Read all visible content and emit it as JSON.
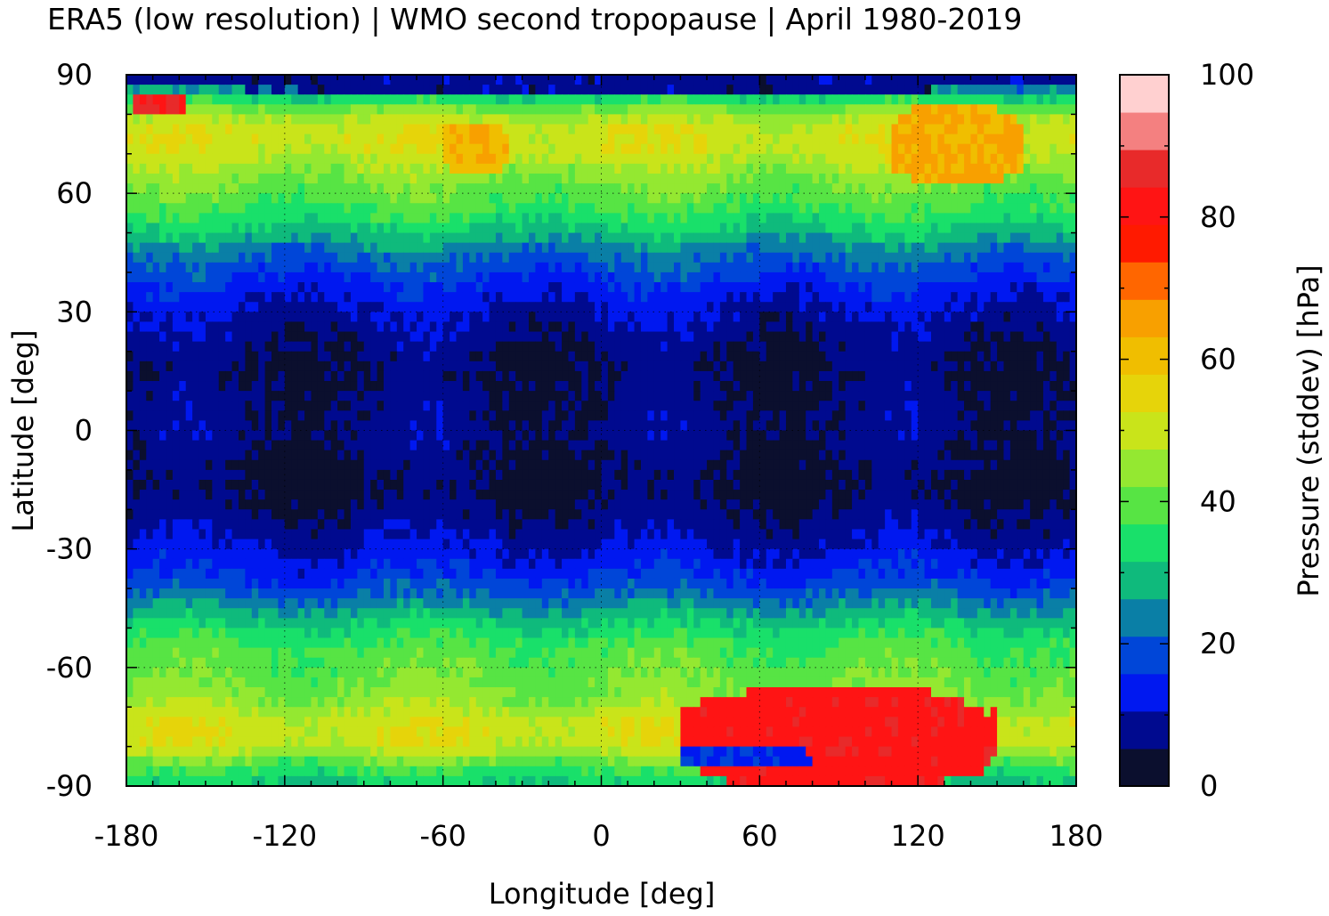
{
  "chart_data": {
    "type": "heatmap",
    "title": "ERA5 (low resolution) | WMO second tropopause | April 1980-2019",
    "xlabel": "Longitude [deg]",
    "ylabel": "Latitude [deg]",
    "colorbar_label": "Pressure (stddev) [hPa]",
    "xlim": [
      -180,
      180
    ],
    "ylim": [
      -90,
      90
    ],
    "x_ticks": [
      "-180",
      "-120",
      "-60",
      "0",
      "60",
      "120",
      "180"
    ],
    "y_ticks": [
      "90",
      "60",
      "30",
      "0",
      "-30",
      "-60",
      "-90"
    ],
    "colorbar_range": [
      0,
      100
    ],
    "colorbar_ticks": [
      "100",
      "80",
      "60",
      "40",
      "20",
      "0"
    ],
    "colorbar_colors": [
      "#0b0f2e",
      "#000a8f",
      "#0018f0",
      "#0046d8",
      "#0a7fa6",
      "#0fba7c",
      "#19e06a",
      "#57e444",
      "#94e831",
      "#c9e41a",
      "#e6d40a",
      "#f0be00",
      "#f8a000",
      "#ff6600",
      "#ff1a00",
      "#ff1414",
      "#e82a2a",
      "#f48080",
      "#ffd0d0"
    ],
    "grid": true,
    "grid_style": "dotted",
    "zonal_profile": {
      "lat": [
        90,
        85,
        80,
        75,
        70,
        65,
        60,
        55,
        50,
        45,
        40,
        35,
        30,
        25,
        20,
        15,
        10,
        5,
        0,
        -5,
        -10,
        -15,
        -20,
        -25,
        -30,
        -35,
        -40,
        -45,
        -50,
        -55,
        -60,
        -65,
        -70,
        -75,
        -80,
        -85,
        -90
      ],
      "value": [
        12,
        30,
        46,
        52,
        50,
        44,
        40,
        36,
        30,
        22,
        18,
        13,
        10,
        8,
        6,
        5,
        6,
        6,
        7,
        6,
        5,
        4,
        6,
        8,
        11,
        14,
        19,
        26,
        33,
        38,
        40,
        42,
        46,
        52,
        50,
        38,
        30
      ]
    },
    "anomalies": [
      {
        "lon_range": [
          30,
          150
        ],
        "lat_range": [
          -88,
          -68
        ],
        "value": 95
      },
      {
        "lon_range": [
          30,
          150
        ],
        "lat_range": [
          -90,
          -65
        ],
        "value": 82
      },
      {
        "lon_range": [
          -60,
          -35
        ],
        "lat_range": [
          65,
          78
        ],
        "value": 62
      },
      {
        "lon_range": [
          110,
          160
        ],
        "lat_range": [
          62,
          82
        ],
        "value": 64
      },
      {
        "lon_range": [
          -178,
          -158
        ],
        "lat_range": [
          80,
          86
        ],
        "value": 85
      },
      {
        "lon_range": [
          30,
          80
        ],
        "lat_range": [
          -86,
          -80
        ],
        "value": 15
      },
      {
        "lon_range": [
          -180,
          180
        ],
        "lat_range": [
          86,
          90
        ],
        "value": 8
      }
    ]
  }
}
